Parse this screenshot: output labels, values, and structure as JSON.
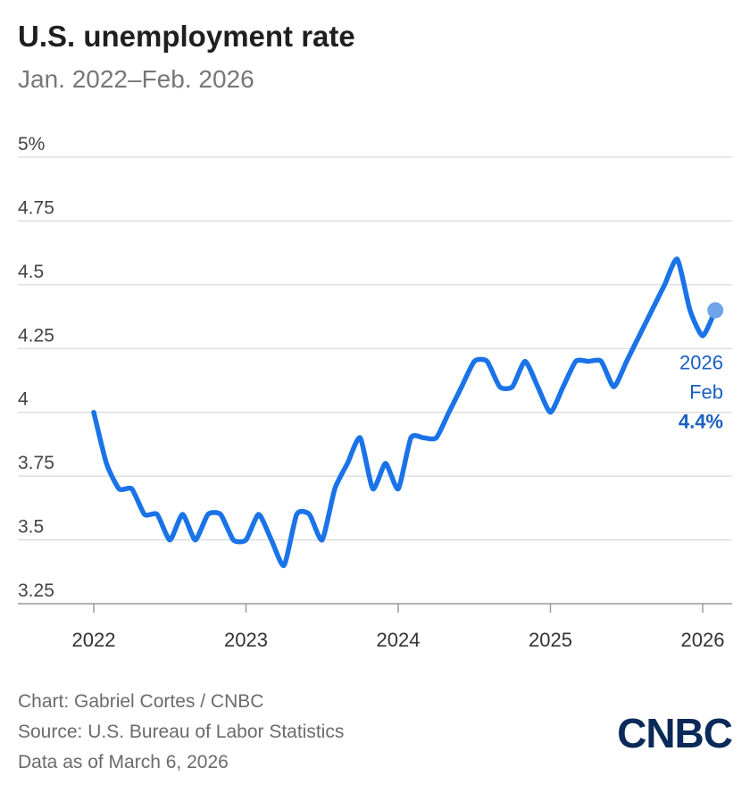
{
  "title": "U.S. unemployment rate",
  "subtitle": "Jan. 2022–Feb. 2026",
  "chart_data": {
    "type": "line",
    "title": "U.S. unemployment rate",
    "subtitle": "Jan. 2022–Feb. 2026",
    "xlabel": "",
    "ylabel": "",
    "ylim": [
      3.25,
      5
    ],
    "yticks": [
      3.25,
      3.5,
      3.75,
      4,
      4.25,
      4.5,
      4.75,
      5
    ],
    "ytick_labels": [
      "3.25",
      "3.5",
      "3.75",
      "4",
      "4.25",
      "4.5",
      "4.75",
      "5%"
    ],
    "xticks": [
      "2022",
      "2023",
      "2024",
      "2025",
      "2026"
    ],
    "grid": true,
    "color": "#1a73e8",
    "series": [
      {
        "name": "Unemployment rate",
        "x": [
          "Jan 2022",
          "Feb 2022",
          "Mar 2022",
          "Apr 2022",
          "May 2022",
          "Jun 2022",
          "Jul 2022",
          "Aug 2022",
          "Sep 2022",
          "Oct 2022",
          "Nov 2022",
          "Dec 2022",
          "Jan 2023",
          "Feb 2023",
          "Mar 2023",
          "Apr 2023",
          "May 2023",
          "Jun 2023",
          "Jul 2023",
          "Aug 2023",
          "Sep 2023",
          "Oct 2023",
          "Nov 2023",
          "Dec 2023",
          "Jan 2024",
          "Feb 2024",
          "Mar 2024",
          "Apr 2024",
          "May 2024",
          "Jun 2024",
          "Jul 2024",
          "Aug 2024",
          "Sep 2024",
          "Oct 2024",
          "Nov 2024",
          "Dec 2024",
          "Jan 2025",
          "Feb 2025",
          "Mar 2025",
          "Apr 2025",
          "May 2025",
          "Jun 2025",
          "Jul 2025",
          "Aug 2025",
          "Sep 2025",
          "Oct 2025",
          "Nov 2025",
          "Dec 2025",
          "Jan 2026",
          "Feb 2026"
        ],
        "values": [
          4.0,
          3.8,
          3.7,
          3.7,
          3.6,
          3.6,
          3.5,
          3.6,
          3.5,
          3.6,
          3.6,
          3.5,
          3.5,
          3.6,
          3.5,
          3.4,
          3.6,
          3.6,
          3.5,
          3.7,
          3.8,
          3.9,
          3.7,
          3.8,
          3.7,
          3.9,
          3.9,
          3.9,
          4.0,
          4.1,
          4.2,
          4.2,
          4.1,
          4.1,
          4.2,
          4.1,
          4.0,
          4.1,
          4.2,
          4.2,
          4.2,
          4.1,
          4.2,
          4.3,
          4.4,
          4.5,
          4.6,
          4.4,
          4.3,
          4.4
        ]
      }
    ],
    "annotation": {
      "year": "2026",
      "month": "Feb",
      "value": "4.4%"
    }
  },
  "footer": {
    "credit": "Chart: Gabriel Cortes / CNBC",
    "source": "Source: U.S. Bureau of Labor Statistics",
    "date": "Data as of March 6, 2026"
  },
  "logo_text": "CNBC"
}
